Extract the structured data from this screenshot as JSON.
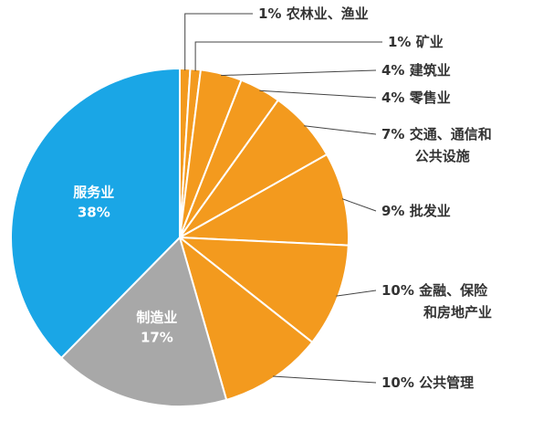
{
  "colors": {
    "services": "#1aa6e6",
    "manufacturing": "#a8a8a8",
    "other": "#f39a1e",
    "slice_border": "#ffffff",
    "leader": "#444444",
    "label_text": "#333333",
    "inner_text": "#ffffff"
  },
  "chart_data": {
    "type": "pie",
    "start_angle_deg": 0,
    "direction": "clockwise",
    "slices": [
      {
        "label": "农林业、渔业",
        "value": 1,
        "display": "1%",
        "color_key": "other",
        "label_lines": [
          "农林业、渔业"
        ]
      },
      {
        "label": "矿业",
        "value": 1,
        "display": "1%",
        "color_key": "other",
        "label_lines": [
          "矿业"
        ]
      },
      {
        "label": "建筑业",
        "value": 4,
        "display": "4%",
        "color_key": "other",
        "label_lines": [
          "建筑业"
        ]
      },
      {
        "label": "零售业",
        "value": 4,
        "display": "4%",
        "color_key": "other",
        "label_lines": [
          "零售业"
        ]
      },
      {
        "label": "交通、通信和公共设施",
        "value": 7,
        "display": "7%",
        "color_key": "other",
        "label_lines": [
          "交通、通信和",
          "公共设施"
        ]
      },
      {
        "label": "批发业",
        "value": 9,
        "display": "9%",
        "color_key": "other",
        "label_lines": [
          "批发业"
        ]
      },
      {
        "label": "金融、保险和房地产业",
        "value": 10,
        "display": "10%",
        "color_key": "other",
        "label_lines": [
          "金融、保险",
          "和房地产业"
        ]
      },
      {
        "label": "公共管理",
        "value": 10,
        "display": "10%",
        "color_key": "other",
        "label_lines": [
          "公共管理"
        ]
      },
      {
        "label": "制造业",
        "value": 17,
        "display": "17%",
        "color_key": "manufacturing",
        "label_lines": [
          "制造业"
        ],
        "inside": true
      },
      {
        "label": "服务业",
        "value": 38,
        "display": "38%",
        "color_key": "services",
        "label_lines": [
          "服务业"
        ],
        "inside": true
      }
    ]
  }
}
